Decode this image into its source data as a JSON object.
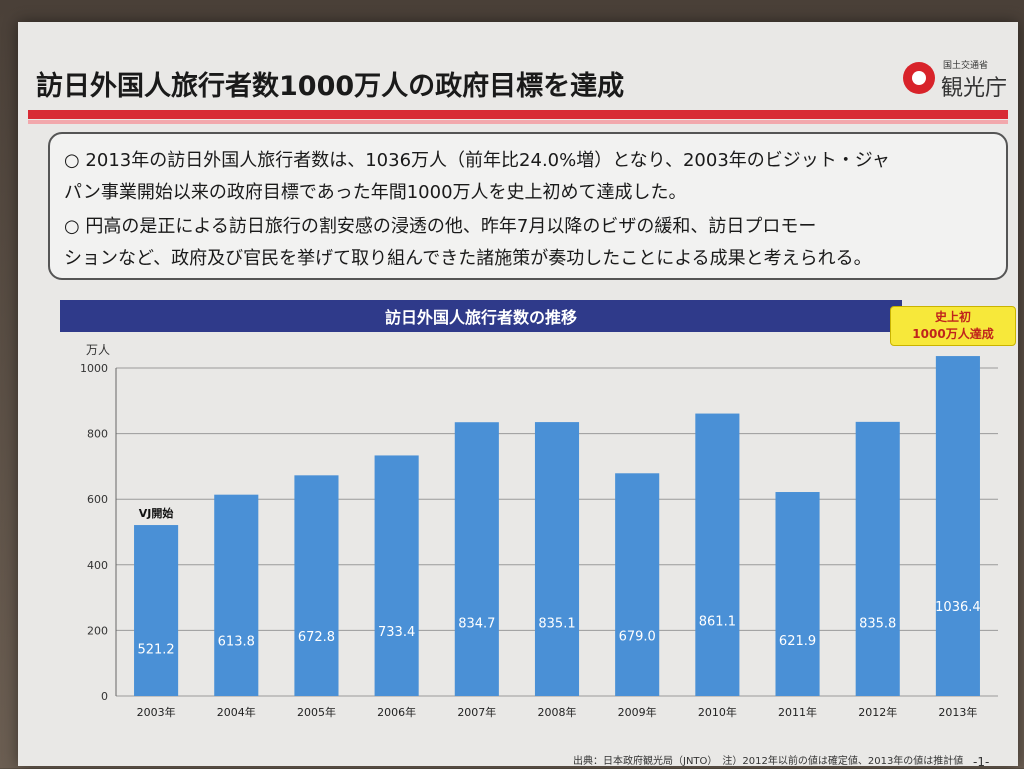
{
  "title": "訪日外国人旅行者数1000万人の政府目標を達成",
  "logo": {
    "agency_small": "国土交通省",
    "agency_name": "観光庁"
  },
  "summary": {
    "lines": [
      "○ 2013年の訪日外国人旅行者数は、1036万人（前年比24.0%増）となり、2003年のビジット・ジャ",
      "パン事業開始以来の政府目標であった年間1000万人を史上初めて達成した。",
      "○ 円高の是正による訪日旅行の割安感の浸透の他、昨年7月以降のビザの緩和、訪日プロモー",
      "ションなど、政府及び官民を挙げて取り組んできた諸施策が奏功したことによる成果と考えられる。"
    ]
  },
  "chart_banner": "訪日外国人旅行者数の推移",
  "callout": {
    "line1": "史上初",
    "line2": "1000万人達成"
  },
  "chart_data": {
    "type": "bar",
    "title": "訪日外国人旅行者数の推移",
    "ylabel": "万人",
    "xlabel": "",
    "categories": [
      "2003年",
      "2004年",
      "2005年",
      "2006年",
      "2007年",
      "2008年",
      "2009年",
      "2010年",
      "2011年",
      "2012年",
      "2013年"
    ],
    "values": [
      521.2,
      613.8,
      672.8,
      733.4,
      834.7,
      835.1,
      679.0,
      861.1,
      621.9,
      835.8,
      1036.4
    ],
    "value_labels": [
      "521.2",
      "613.8",
      "672.8",
      "733.4",
      "834.7",
      "835.1",
      "679.0",
      "861.1",
      "621.9",
      "835.8",
      "1036.4"
    ],
    "yticks": [
      "0",
      "200",
      "400",
      "600",
      "800",
      "1000"
    ],
    "ylim": [
      0,
      1000
    ],
    "grid": true,
    "bar_color": "#4a90d6",
    "annotation": "VJ開始"
  },
  "footer": {
    "source": "出典：日本政府観光局（JNTO）　注）2012年以前の値は確定値、2013年の値は推計値",
    "page": "-1-"
  }
}
